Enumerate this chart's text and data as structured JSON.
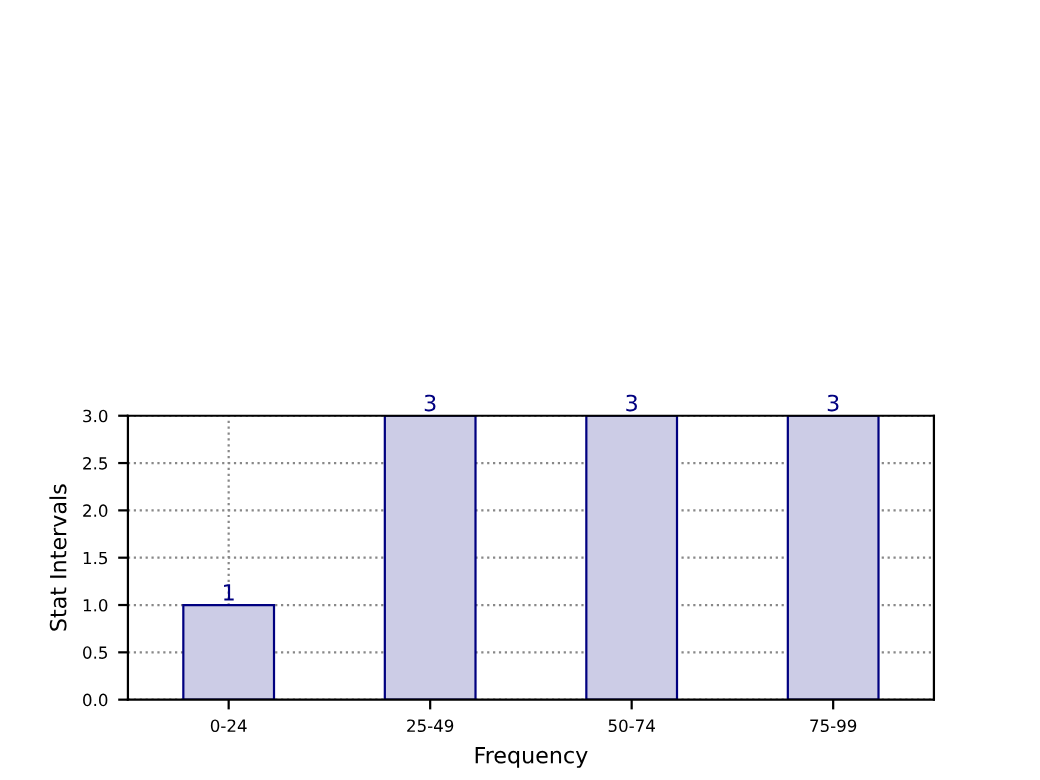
{
  "chart_data": {
    "type": "bar",
    "xlabel": "Frequency",
    "ylabel": "Stat Intervals",
    "categories": [
      "0-24",
      "25-49",
      "50-74",
      "75-99"
    ],
    "values": [
      1,
      3,
      3,
      3
    ],
    "color": "#ccccE6",
    "ylim": [
      0,
      3
    ],
    "yticks": [
      {
        "value": 0,
        "label": "0.0"
      },
      {
        "value": 0.5,
        "label": "0.5"
      },
      {
        "value": 1,
        "label": "1.0"
      },
      {
        "value": 1.5,
        "label": "1.5"
      },
      {
        "value": 2,
        "label": "2.0"
      },
      {
        "value": 2.5,
        "label": "2.5"
      },
      {
        "value": 3,
        "label": "3.0"
      }
    ],
    "grid": true,
    "data_labels": true
  }
}
